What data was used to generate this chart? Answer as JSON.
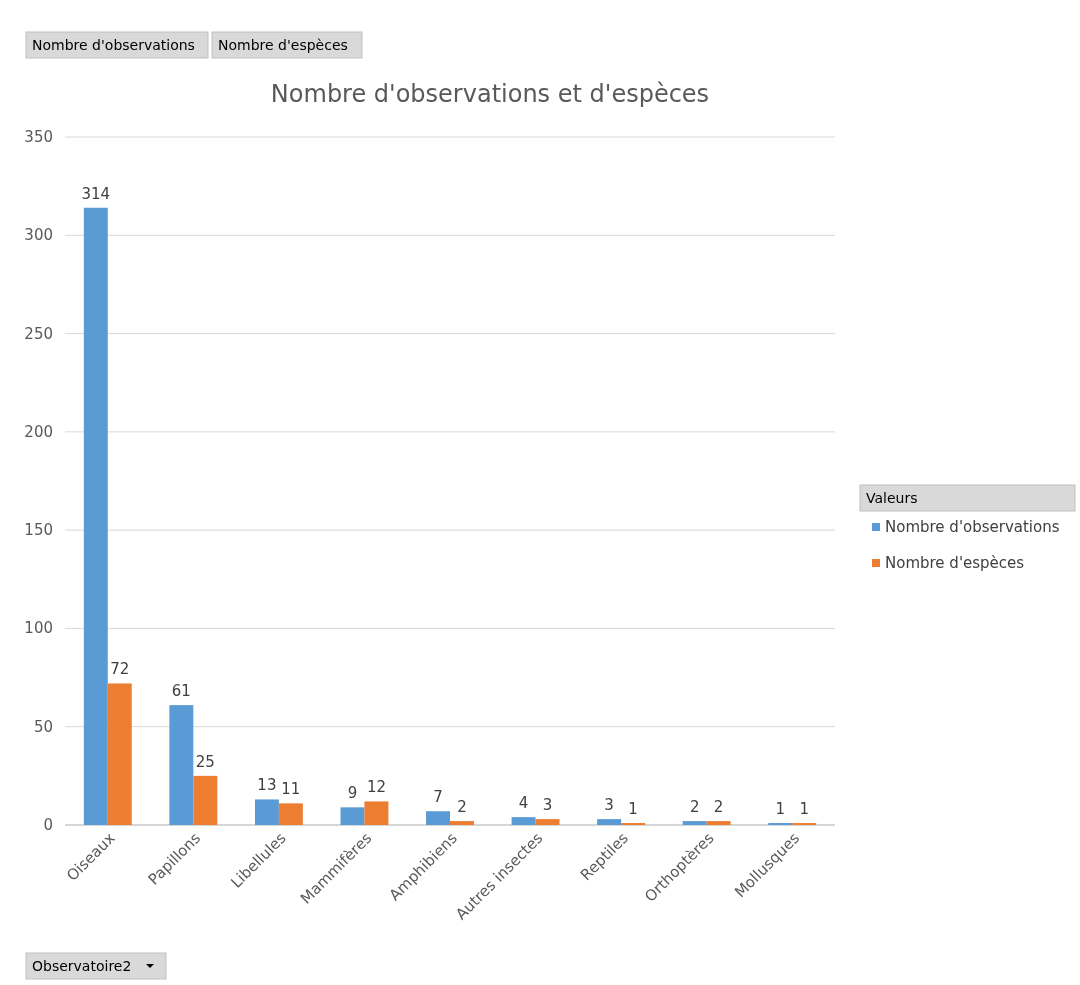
{
  "chart_data": {
    "type": "bar",
    "title": "Nombre d'observations et d'espèces",
    "categories": [
      "Oiseaux",
      "Papillons",
      "Libellules",
      "Mammifères",
      "Amphibiens",
      "Autres insectes",
      "Reptiles",
      "Orthoptères",
      "Mollusques"
    ],
    "series": [
      {
        "name": "Nombre d'observations",
        "color": "#5b9bd5",
        "values": [
          314,
          61,
          13,
          9,
          7,
          4,
          3,
          2,
          1
        ]
      },
      {
        "name": "Nombre d'espèces",
        "color": "#ed7d31",
        "values": [
          72,
          25,
          11,
          12,
          2,
          3,
          1,
          2,
          1
        ]
      }
    ],
    "ylim": [
      0,
      350
    ],
    "yticks": [
      0,
      50,
      100,
      150,
      200,
      250,
      300,
      350
    ],
    "grid": "y",
    "legend": "right",
    "legend_title": "Valeurs",
    "data_labels": true,
    "annotations": [
      "Nombre d'observations",
      "Nombre d'espèces",
      "Observatoire2"
    ]
  }
}
